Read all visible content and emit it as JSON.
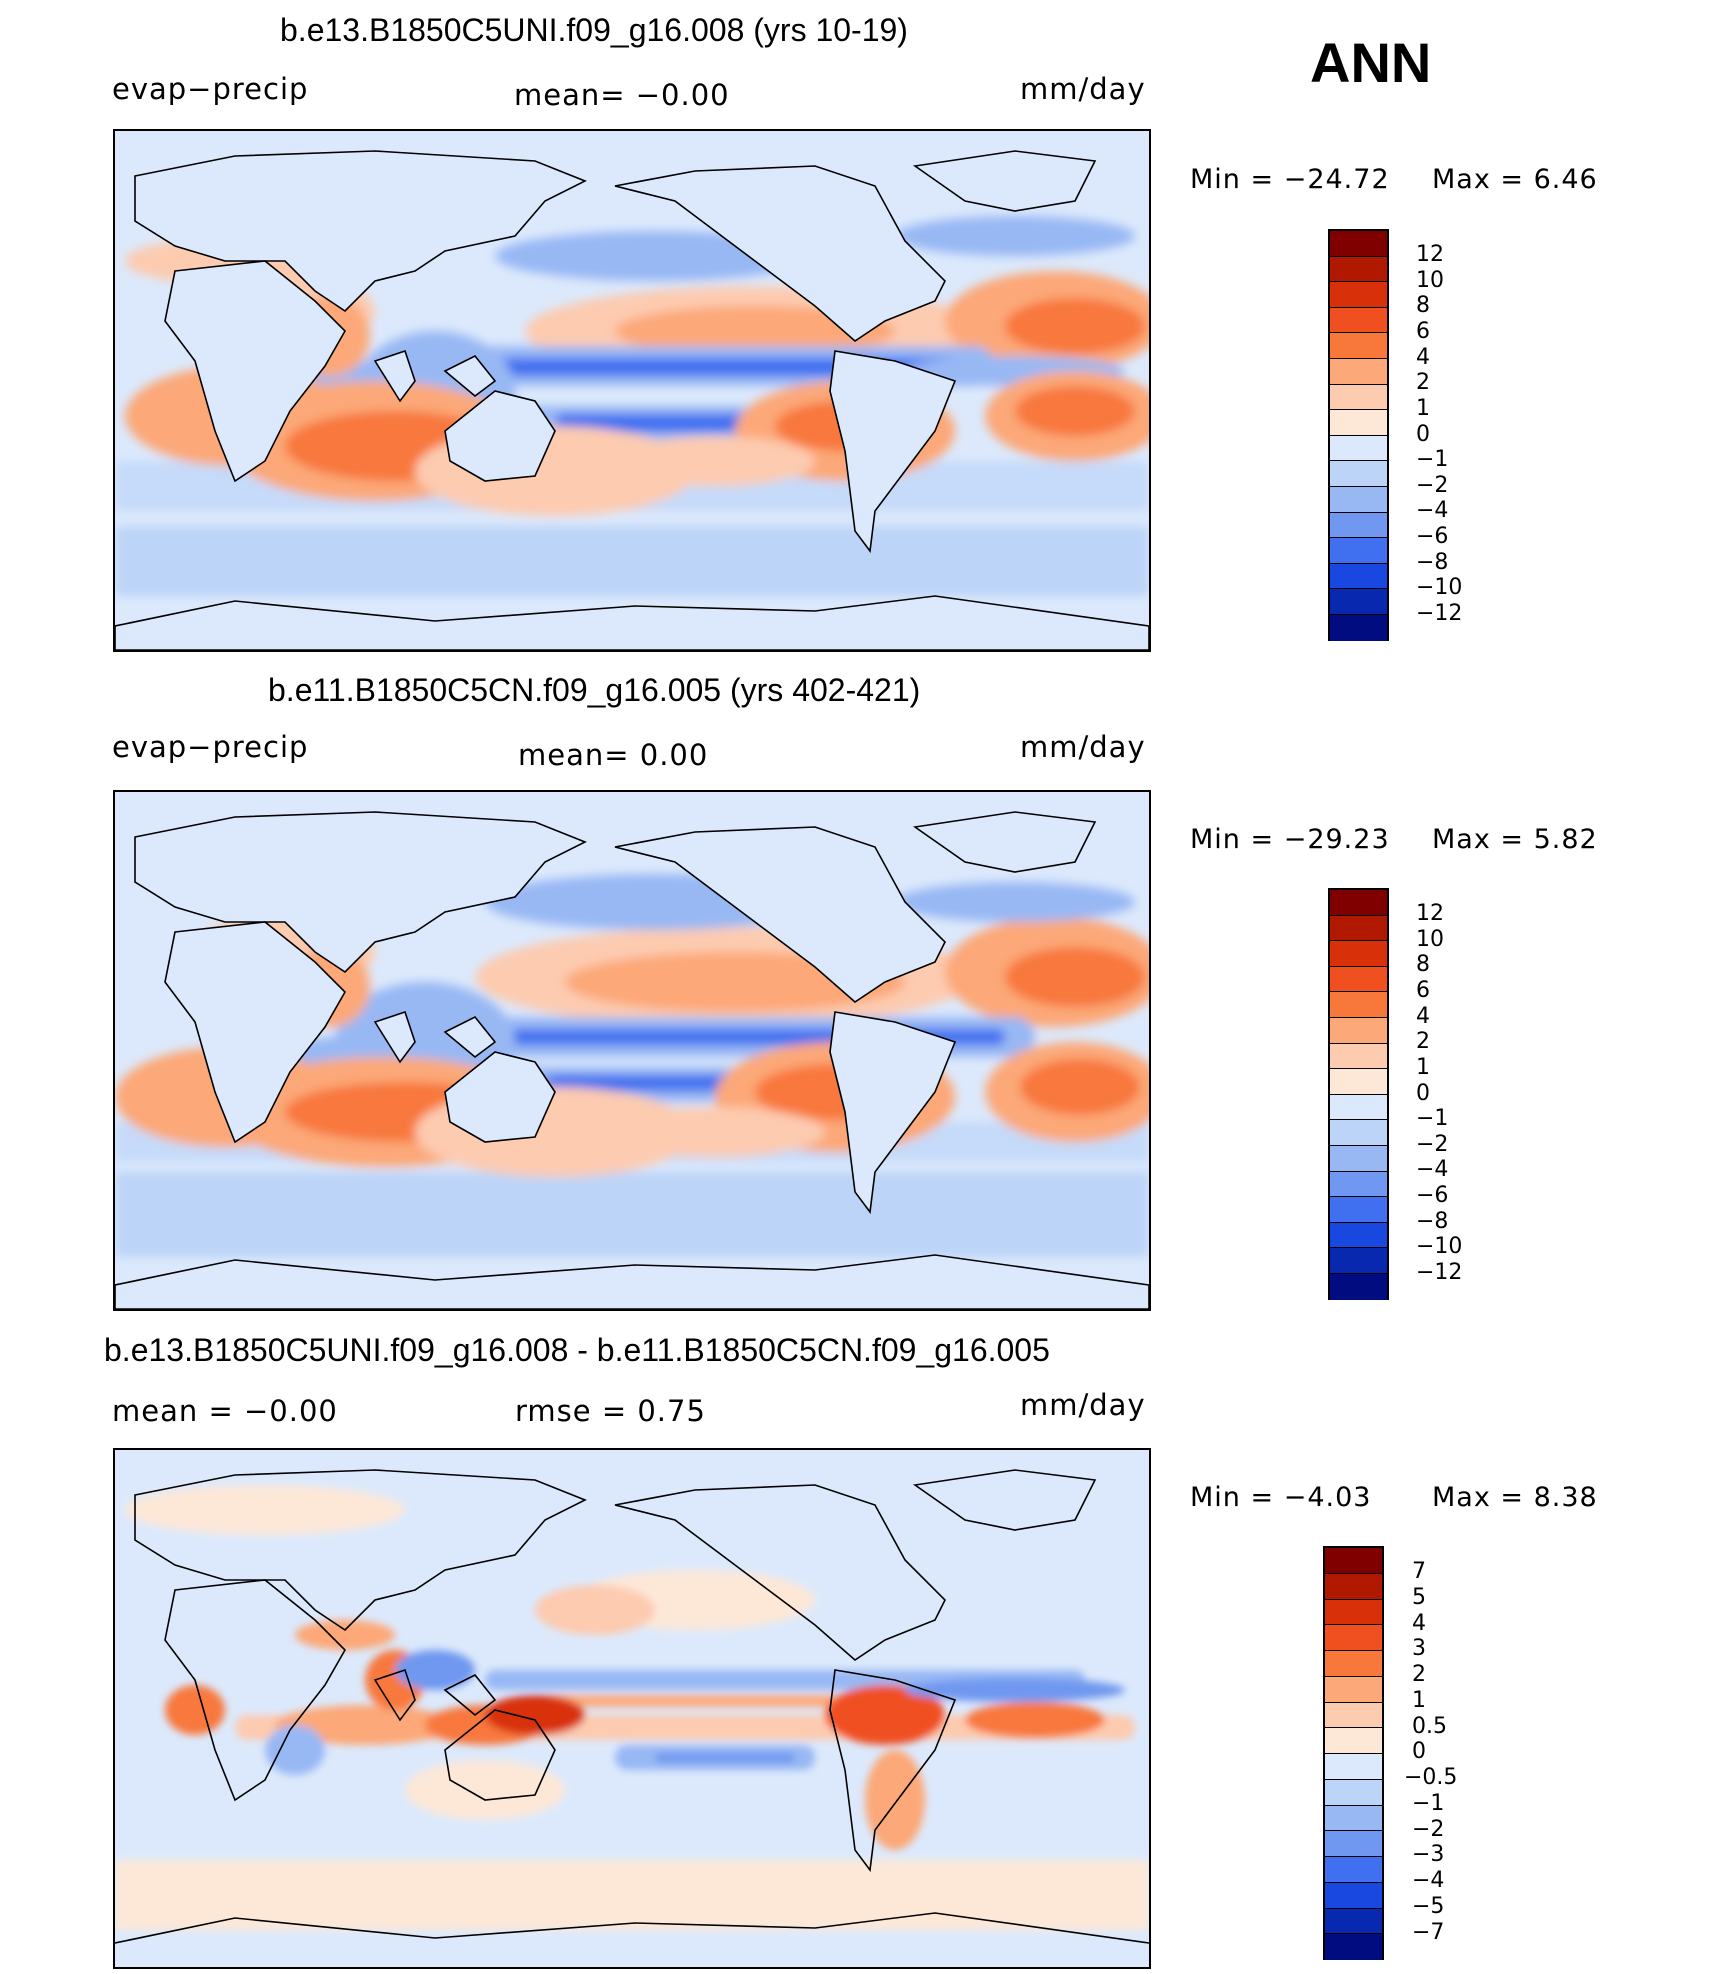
{
  "season": "ANN",
  "panels": [
    {
      "title": "b.e13.B1850C5UNI.f09_g16.008 (yrs 10-19)",
      "left_label": "evap−precip",
      "mid_label": "mean=   −0.00",
      "units": "mm/day",
      "min_label": "Min  =  −24.72",
      "max_label": "Max  =     6.46",
      "colorbar": {
        "labels": [
          "12",
          "10",
          "8",
          "6",
          "4",
          "2",
          "1",
          "0",
          "−1",
          "−2",
          "−4",
          "−6",
          "−8",
          "−10",
          "−12"
        ],
        "colors": [
          "#800000",
          "#b01800",
          "#d83008",
          "#f05020",
          "#f8783c",
          "#fca878",
          "#fdcbb0",
          "#fde8d8",
          "#dce9fc",
          "#bcd4f8",
          "#98b8f4",
          "#7098f0",
          "#4070f0",
          "#1848e0",
          "#0828b0",
          "#000c80"
        ]
      }
    },
    {
      "title": "b.e11.B1850C5CN.f09_g16.005 (yrs 402-421)",
      "left_label": "evap−precip",
      "mid_label": "mean=     0.00",
      "units": "mm/day",
      "min_label": "Min  =  −29.23",
      "max_label": "Max  =     5.82",
      "colorbar": {
        "labels": [
          "12",
          "10",
          "8",
          "6",
          "4",
          "2",
          "1",
          "0",
          "−1",
          "−2",
          "−4",
          "−6",
          "−8",
          "−10",
          "−12"
        ],
        "colors": [
          "#800000",
          "#b01800",
          "#d83008",
          "#f05020",
          "#f8783c",
          "#fca878",
          "#fdcbb0",
          "#fde8d8",
          "#dce9fc",
          "#bcd4f8",
          "#98b8f4",
          "#7098f0",
          "#4070f0",
          "#1848e0",
          "#0828b0",
          "#000c80"
        ]
      }
    },
    {
      "title": "b.e13.B1850C5UNI.f09_g16.008 - b.e11.B1850C5CN.f09_g16.005",
      "left_label": "mean  =    −0.00",
      "mid_label": "rmse  =     0.75",
      "units": "mm/day",
      "min_label": "Min  =    −4.03",
      "max_label": "Max  =     8.38",
      "colorbar": {
        "labels": [
          "7",
          "5",
          "4",
          "3",
          "2",
          "1",
          "0.5",
          "0",
          "−0.5",
          "−1",
          "−2",
          "−3",
          "−4",
          "−5",
          "−7"
        ],
        "colors": [
          "#800000",
          "#b01800",
          "#d83008",
          "#f05020",
          "#f8783c",
          "#fca878",
          "#fdcbb0",
          "#fde8d8",
          "#dce9fc",
          "#bcd4f8",
          "#98b8f4",
          "#7098f0",
          "#4070f0",
          "#1848e0",
          "#0828b0",
          "#000c80"
        ]
      }
    }
  ]
}
